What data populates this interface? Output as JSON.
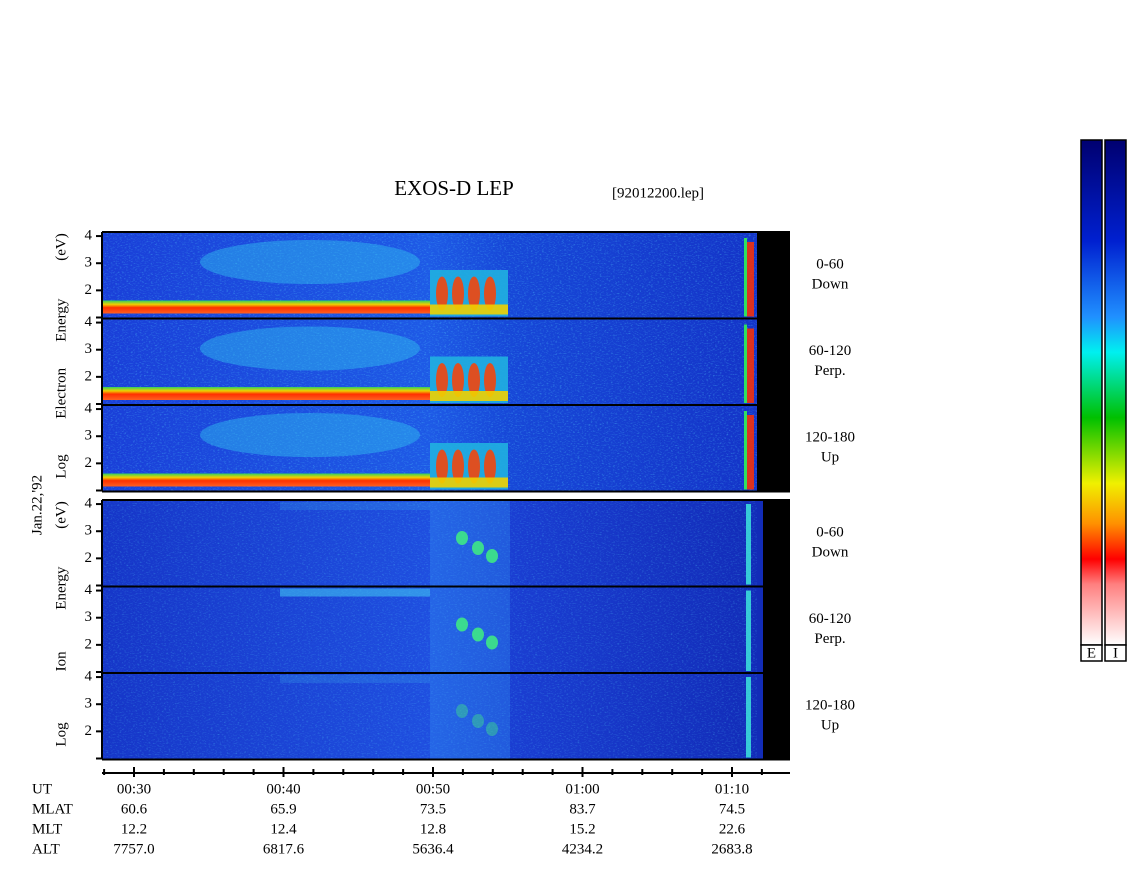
{
  "header": {
    "title": "EXOS-D LEP",
    "file": "[92012200.lep]"
  },
  "date": "Jan.22,'92",
  "groups": [
    {
      "ylabel": [
        "Log",
        "Electron",
        "Energy",
        "(eV)"
      ],
      "panels": [
        {
          "angle": "0-60",
          "direction": "Down"
        },
        {
          "angle": "60-120",
          "direction": "Perp."
        },
        {
          "angle": "120-180",
          "direction": "Up"
        }
      ]
    },
    {
      "ylabel": [
        "Log",
        "Ion",
        "Energy",
        "(eV)"
      ],
      "panels": [
        {
          "angle": "0-60",
          "direction": "Down"
        },
        {
          "angle": "60-120",
          "direction": "Perp."
        },
        {
          "angle": "120-180",
          "direction": "Up"
        }
      ]
    }
  ],
  "ylim": [
    1,
    4.15
  ],
  "yticks": [
    2,
    3,
    4
  ],
  "ephemeris": {
    "labels": [
      "UT",
      "MLAT",
      "MLT",
      "ALT"
    ],
    "columns": [
      [
        "00:30",
        "60.6",
        "12.2",
        "7757.0"
      ],
      [
        "00:40",
        "65.9",
        "12.4",
        "6817.6"
      ],
      [
        "00:50",
        "73.5",
        "12.8",
        "5636.4"
      ],
      [
        "01:00",
        "83.7",
        "15.2",
        "4234.2"
      ],
      [
        "01:10",
        "74.5",
        "22.6",
        "2683.8"
      ]
    ]
  },
  "colorbar": {
    "labels": [
      "E",
      "I"
    ]
  }
}
